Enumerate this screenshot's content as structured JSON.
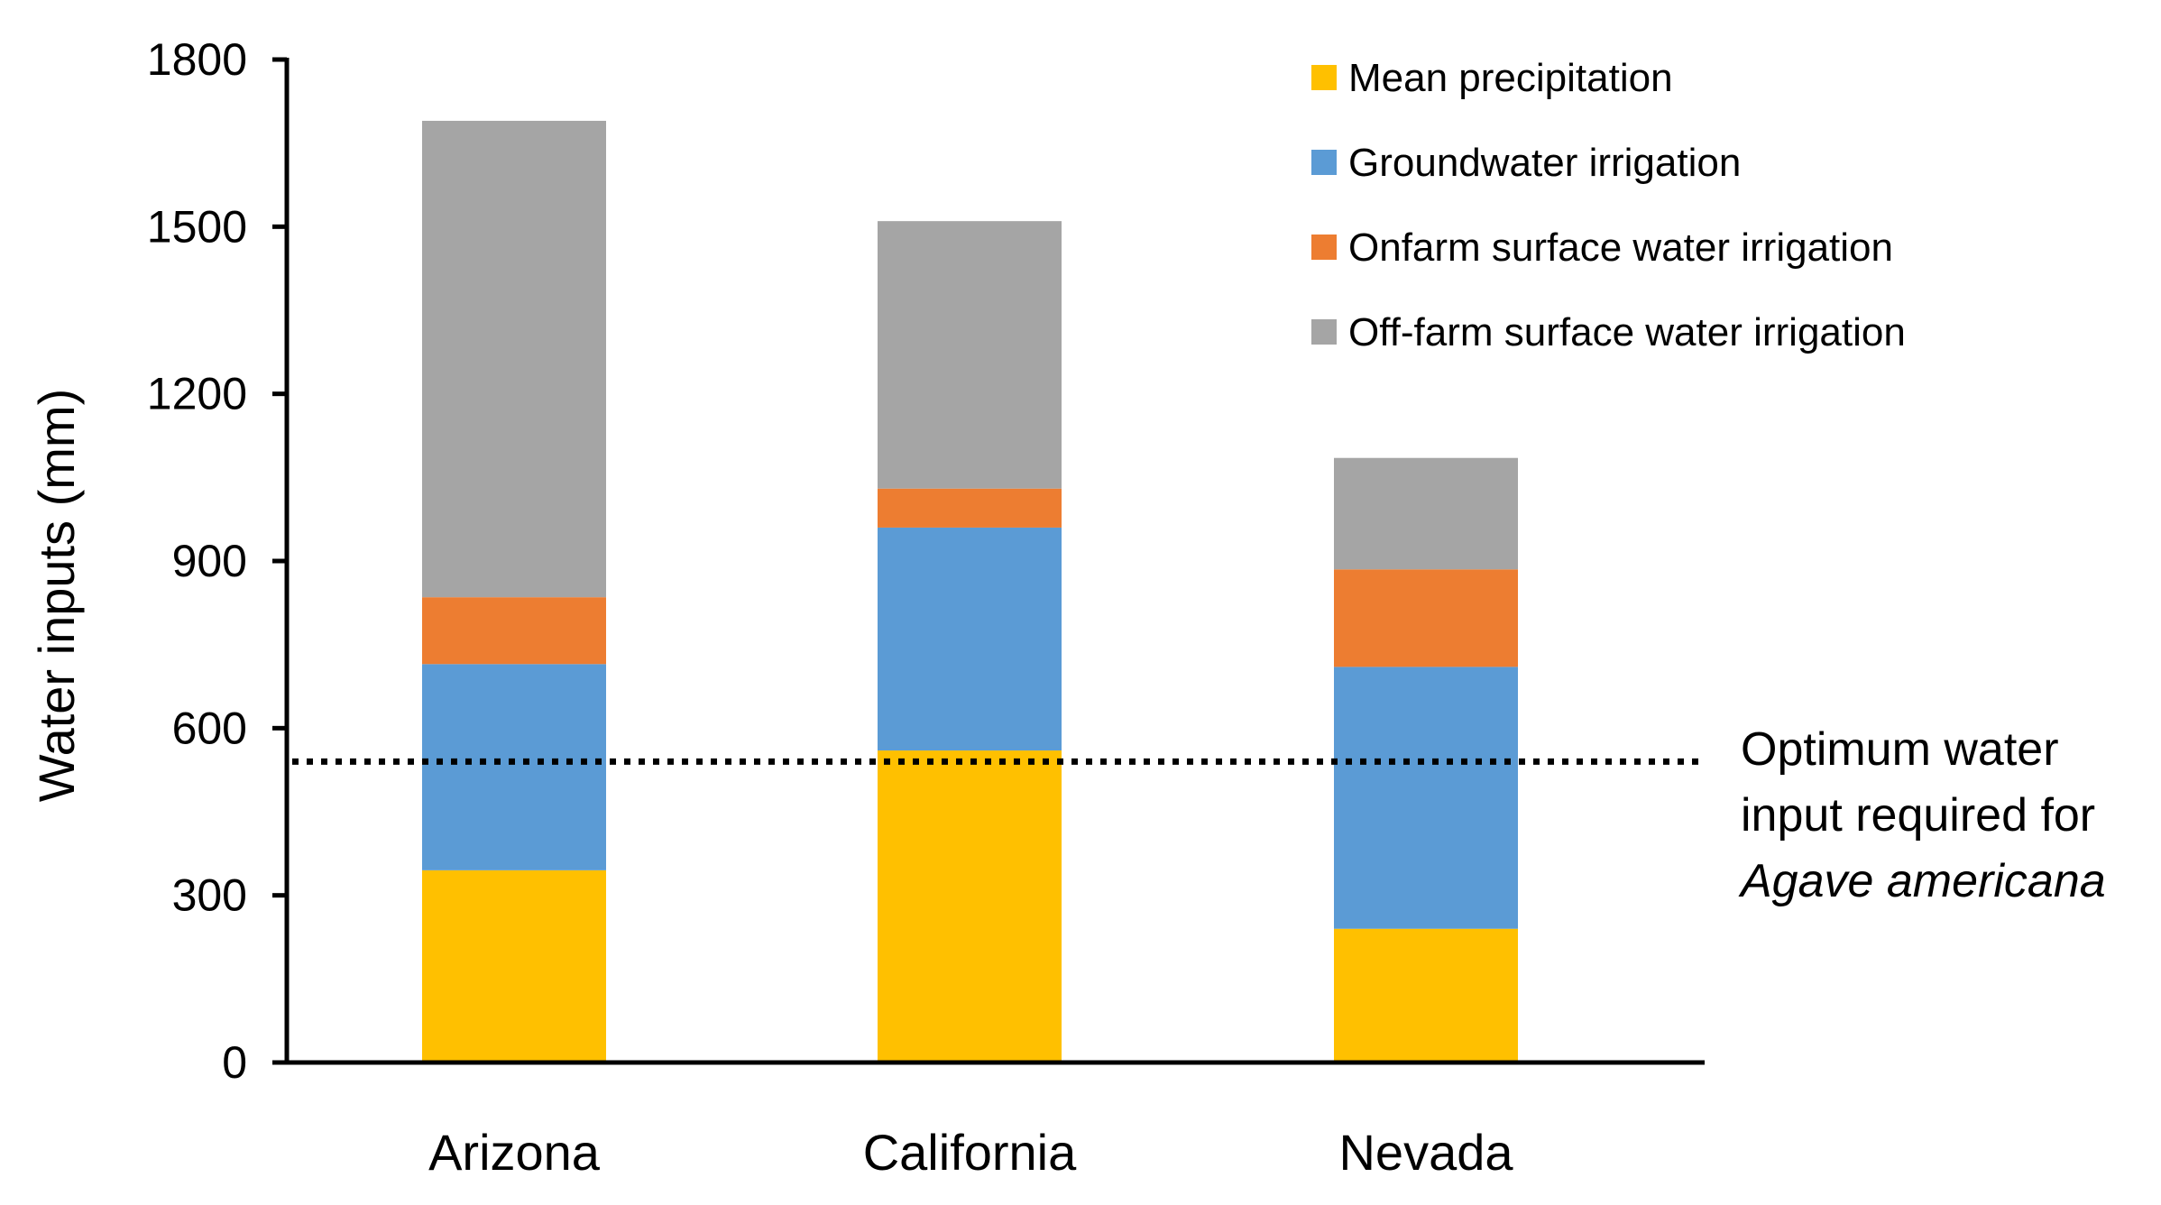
{
  "chart_data": {
    "type": "bar",
    "stacked": true,
    "title": "",
    "xlabel": "",
    "ylabel": "Water inputs (mm)",
    "ylim": [
      0,
      1800
    ],
    "yticks": [
      0,
      300,
      600,
      900,
      1200,
      1500,
      1800
    ],
    "ytick_labels": [
      "0",
      "300",
      "600",
      "900",
      "1200",
      "1500",
      "1800"
    ],
    "categories": [
      "Arizona",
      "California",
      "Nevada"
    ],
    "series": [
      {
        "name": "Mean precipitation",
        "color": "#FFC000",
        "values": [
          345,
          560,
          240
        ]
      },
      {
        "name": "Groundwater irrigation",
        "color": "#5B9BD5",
        "values": [
          370,
          400,
          470
        ]
      },
      {
        "name": "Onfarm surface water irrigation",
        "color": "#ED7D31",
        "values": [
          120,
          70,
          175
        ]
      },
      {
        "name": "Off-farm surface water irrigation",
        "color": "#A5A5A5",
        "values": [
          855,
          480,
          200
        ]
      }
    ],
    "reference_line": {
      "value": 540,
      "style": "dotted",
      "label_lines": [
        "Optimum water",
        "input required for"
      ],
      "label_italic": "Agave americana"
    },
    "legend_position": "top-right",
    "grid": false
  }
}
